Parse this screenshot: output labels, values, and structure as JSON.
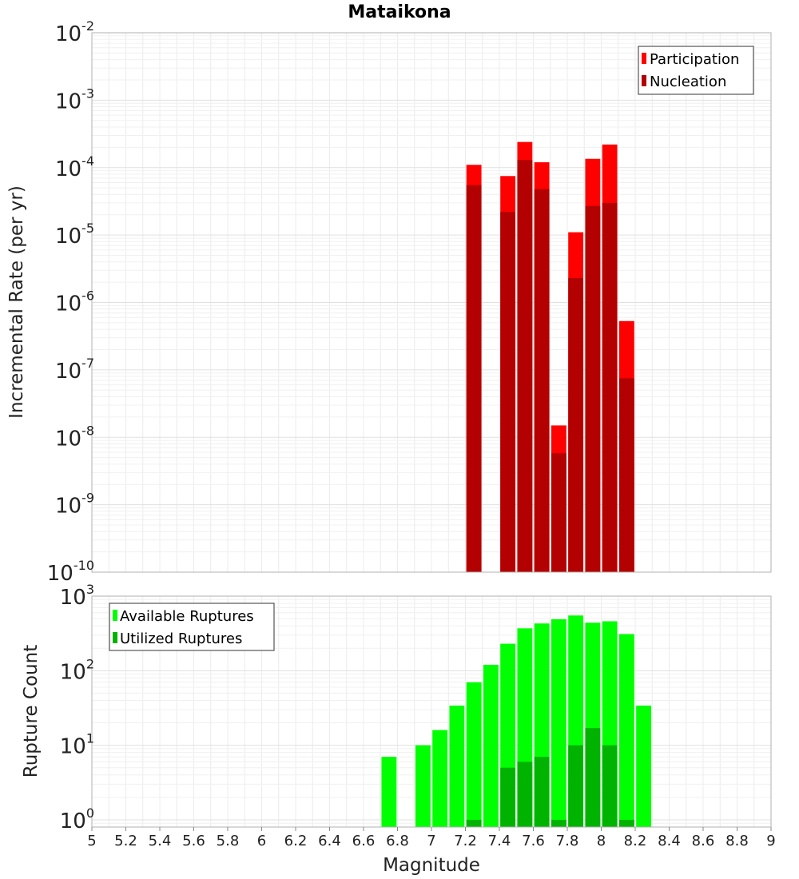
{
  "chart_data": [
    {
      "type": "bar",
      "title": "Mataikona",
      "xlabel": "",
      "ylabel": "Incremental Rate (per yr)",
      "yscale": "log",
      "xlim": [
        5,
        9
      ],
      "ylim": [
        1e-10,
        0.01
      ],
      "bin_width": 0.1,
      "x": [
        7.25,
        7.45,
        7.55,
        7.65,
        7.75,
        7.85,
        7.95,
        8.05,
        8.15
      ],
      "series": [
        {
          "name": "Participation",
          "color": "#ff0000",
          "values": [
            0.00011,
            7.5e-05,
            0.00024,
            0.00012,
            1.5e-08,
            1.1e-05,
            0.000135,
            0.00022,
            5.3e-07
          ]
        },
        {
          "name": "Nucleation",
          "color": "#b30000",
          "values": [
            5.5e-05,
            2.2e-05,
            0.00013,
            4.8e-05,
            5.8e-09,
            2.3e-06,
            2.7e-05,
            3e-05,
            7.5e-08
          ]
        }
      ],
      "legend": "top-right",
      "grid": true,
      "yticks": [
        {
          "base": "10",
          "exp": "-2"
        },
        {
          "base": "10",
          "exp": "-3"
        },
        {
          "base": "10",
          "exp": "-4"
        },
        {
          "base": "10",
          "exp": "-5"
        },
        {
          "base": "10",
          "exp": "-6"
        },
        {
          "base": "10",
          "exp": "-7"
        },
        {
          "base": "10",
          "exp": "-8"
        },
        {
          "base": "10",
          "exp": "-9"
        },
        {
          "base": "10",
          "exp": "-10"
        }
      ]
    },
    {
      "type": "bar",
      "title": "",
      "xlabel": "Magnitude",
      "ylabel": "Rupture Count",
      "yscale": "log",
      "xlim": [
        5,
        9
      ],
      "ylim": [
        0.8,
        1000
      ],
      "bin_width": 0.1,
      "x": [
        6.75,
        6.95,
        7.05,
        7.15,
        7.25,
        7.35,
        7.45,
        7.55,
        7.65,
        7.75,
        7.85,
        7.95,
        8.05,
        8.15,
        8.25
      ],
      "series": [
        {
          "name": "Available Ruptures",
          "color": "#00ff00",
          "values": [
            7,
            10,
            16,
            34,
            70,
            120,
            230,
            370,
            430,
            490,
            550,
            440,
            460,
            310,
            34
          ]
        },
        {
          "name": "Utilized Ruptures",
          "color": "#00b300",
          "values": [
            0,
            0,
            0,
            0,
            1,
            0,
            5,
            6,
            7,
            1,
            10,
            17,
            10,
            1,
            0
          ]
        }
      ],
      "legend": "top-left",
      "grid": true,
      "yticks": [
        {
          "base": "10",
          "exp": "3"
        },
        {
          "base": "10",
          "exp": "2"
        },
        {
          "base": "10",
          "exp": "1"
        },
        {
          "base": "10",
          "exp": "0"
        }
      ],
      "xticks": [
        "5",
        "5.2",
        "5.4",
        "5.6",
        "5.8",
        "6",
        "6.2",
        "6.4",
        "6.6",
        "6.8",
        "7",
        "7.2",
        "7.4",
        "7.6",
        "7.8",
        "8",
        "8.2",
        "8.4",
        "8.6",
        "8.8",
        "9"
      ]
    }
  ],
  "colors": {
    "participation": "#ff0000",
    "nucleation": "#b30000",
    "available": "#00ff00",
    "utilized": "#00b300",
    "grid": "#e8e8e8",
    "frame": "#b0b0b0"
  }
}
